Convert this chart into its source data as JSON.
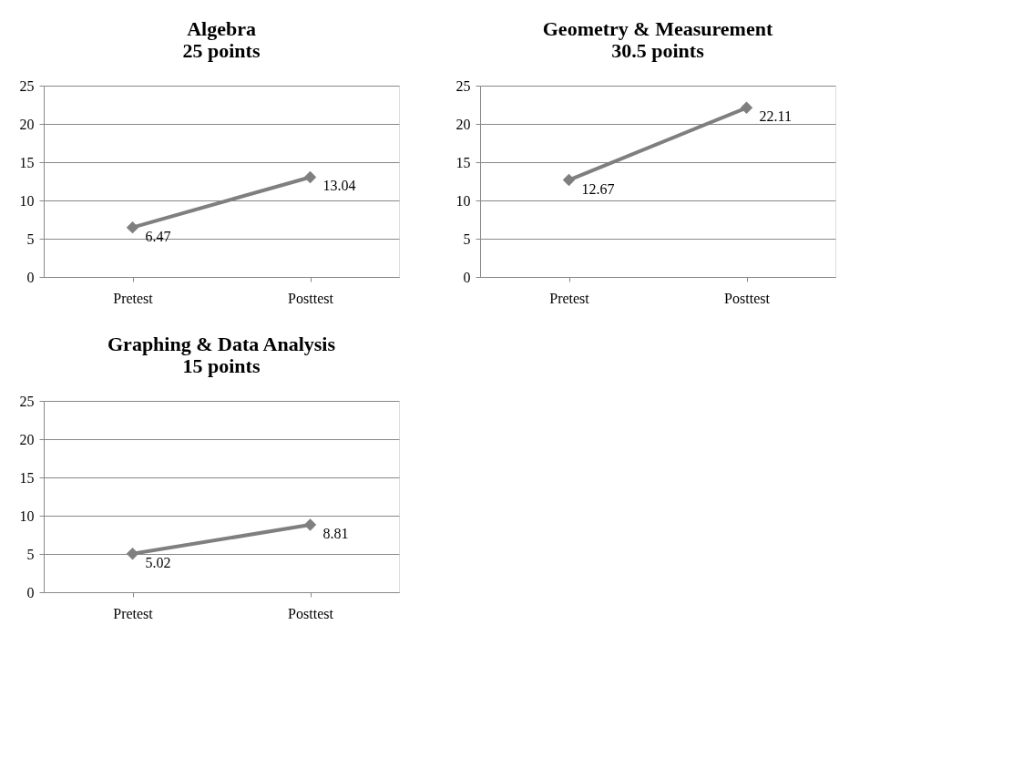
{
  "chart_data": [
    {
      "type": "line",
      "title": "Algebra\n25 points",
      "categories": [
        "Pretest",
        "Posttest"
      ],
      "series": [
        {
          "color": "#7f7f7f",
          "values": [
            6.47,
            13.04
          ]
        }
      ],
      "ylim": [
        0,
        25
      ],
      "yticks": [
        0,
        5,
        10,
        15,
        20,
        25
      ],
      "grid": "y",
      "marker": "diamond",
      "data_labels": true
    },
    {
      "type": "line",
      "title": "Geometry & Measurement\n30.5 points",
      "categories": [
        "Pretest",
        "Posttest"
      ],
      "series": [
        {
          "color": "#7f7f7f",
          "values": [
            12.67,
            22.11
          ]
        }
      ],
      "ylim": [
        0,
        25
      ],
      "yticks": [
        0,
        5,
        10,
        15,
        20,
        25
      ],
      "grid": "y",
      "marker": "diamond",
      "data_labels": true
    },
    {
      "type": "line",
      "title": "Graphing & Data Analysis\n15 points",
      "categories": [
        "Pretest",
        "Posttest"
      ],
      "series": [
        {
          "color": "#7f7f7f",
          "values": [
            5.02,
            8.81
          ]
        }
      ],
      "ylim": [
        0,
        25
      ],
      "yticks": [
        0,
        5,
        10,
        15,
        20,
        25
      ],
      "grid": "y",
      "marker": "diamond",
      "data_labels": true
    }
  ]
}
